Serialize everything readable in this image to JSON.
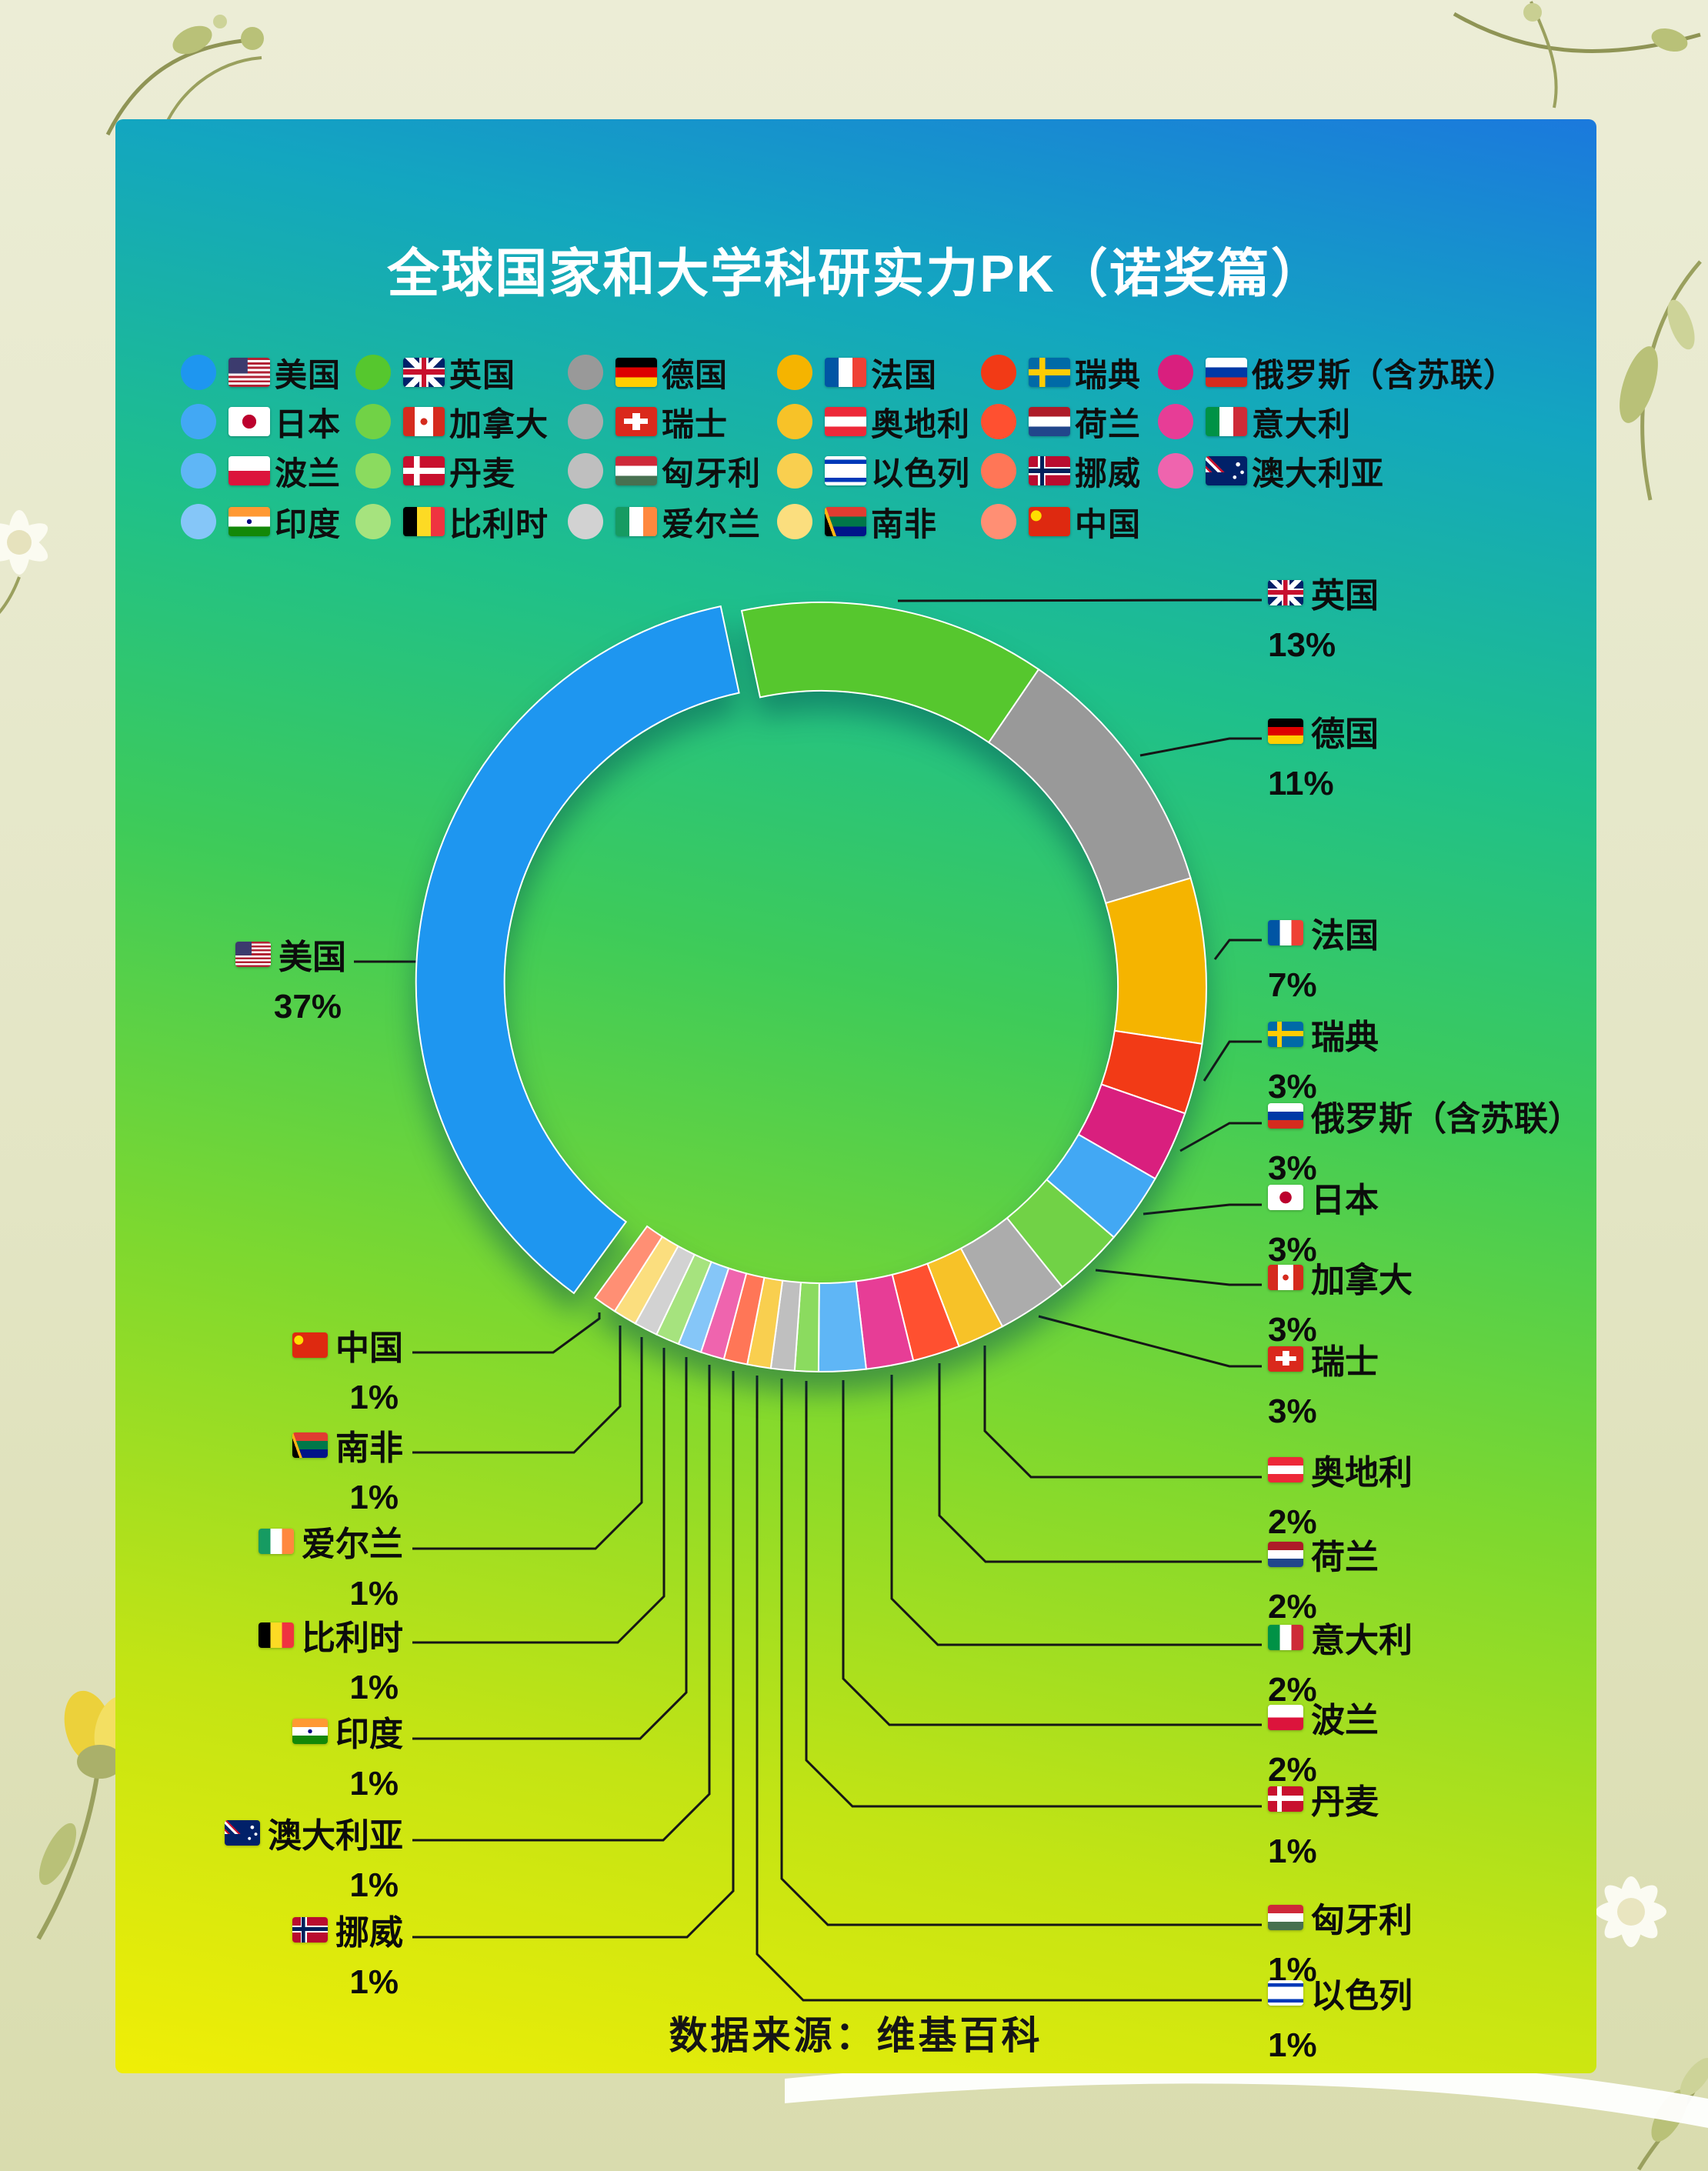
{
  "title": "全球国家和大学科研实力PK（诺奖篇）",
  "source": "数据来源：维基百科",
  "chart_data": {
    "type": "pie",
    "donut": true,
    "title": "全球国家和大学科研实力PK（诺奖篇）",
    "source": "数据来源：维基百科",
    "unit": "%",
    "start_angle_deg": -12,
    "exploded_slice": "us",
    "legend_position": "top",
    "items": [
      {
        "id": "us",
        "label": "美国",
        "value": 37,
        "color": "#1E96F0",
        "icon": "flag-us"
      },
      {
        "id": "uk",
        "label": "英国",
        "value": 13,
        "color": "#56C72E",
        "icon": "flag-uk"
      },
      {
        "id": "de",
        "label": "德国",
        "value": 11,
        "color": "#999999",
        "icon": "flag-de"
      },
      {
        "id": "fr",
        "label": "法国",
        "value": 7,
        "color": "#F5B400",
        "icon": "flag-fr"
      },
      {
        "id": "se",
        "label": "瑞典",
        "value": 3,
        "color": "#F23A16",
        "icon": "flag-se"
      },
      {
        "id": "ru",
        "label": "俄罗斯（含苏联）",
        "value": 3,
        "color": "#D91F7E",
        "icon": "flag-ru"
      },
      {
        "id": "jp",
        "label": "日本",
        "value": 3,
        "color": "#42A8F4",
        "icon": "flag-jp"
      },
      {
        "id": "ca",
        "label": "加拿大",
        "value": 3,
        "color": "#71D246",
        "icon": "flag-ca"
      },
      {
        "id": "ch",
        "label": "瑞士",
        "value": 3,
        "color": "#ACACAC",
        "icon": "flag-ch"
      },
      {
        "id": "at",
        "label": "奥地利",
        "value": 2,
        "color": "#F7C228",
        "icon": "flag-at"
      },
      {
        "id": "nl",
        "label": "荷兰",
        "value": 2,
        "color": "#FF5030",
        "icon": "flag-nl"
      },
      {
        "id": "it",
        "label": "意大利",
        "value": 2,
        "color": "#E73D96",
        "icon": "flag-it"
      },
      {
        "id": "pl",
        "label": "波兰",
        "value": 2,
        "color": "#5FB6F6",
        "icon": "flag-pl"
      },
      {
        "id": "dk",
        "label": "丹麦",
        "value": 1,
        "color": "#8BDB5F",
        "icon": "flag-dk"
      },
      {
        "id": "hu",
        "label": "匈牙利",
        "value": 1,
        "color": "#BFBFBF",
        "icon": "flag-hu"
      },
      {
        "id": "il",
        "label": "以色列",
        "value": 1,
        "color": "#F9CF4F",
        "icon": "flag-il"
      },
      {
        "id": "no",
        "label": "挪威",
        "value": 1,
        "color": "#FF7657",
        "icon": "flag-no"
      },
      {
        "id": "au",
        "label": "澳大利亚",
        "value": 1,
        "color": "#EF64AE",
        "icon": "flag-au"
      },
      {
        "id": "in",
        "label": "印度",
        "value": 1,
        "color": "#85C6F8",
        "icon": "flag-in"
      },
      {
        "id": "be",
        "label": "比利时",
        "value": 1,
        "color": "#A6E37E",
        "icon": "flag-be"
      },
      {
        "id": "ie",
        "label": "爱尔兰",
        "value": 1,
        "color": "#D2D2D2",
        "icon": "flag-ie"
      },
      {
        "id": "za",
        "label": "南非",
        "value": 1,
        "color": "#FBDE7E",
        "icon": "flag-za"
      },
      {
        "id": "cn",
        "label": "中国",
        "value": 1,
        "color": "#FF8F74",
        "icon": "flag-cn"
      }
    ],
    "slice_order": [
      "uk",
      "de",
      "fr",
      "se",
      "ru",
      "jp",
      "ca",
      "ch",
      "at",
      "nl",
      "it",
      "pl",
      "dk",
      "hu",
      "il",
      "no",
      "au",
      "in",
      "be",
      "ie",
      "za",
      "cn",
      "us"
    ]
  }
}
